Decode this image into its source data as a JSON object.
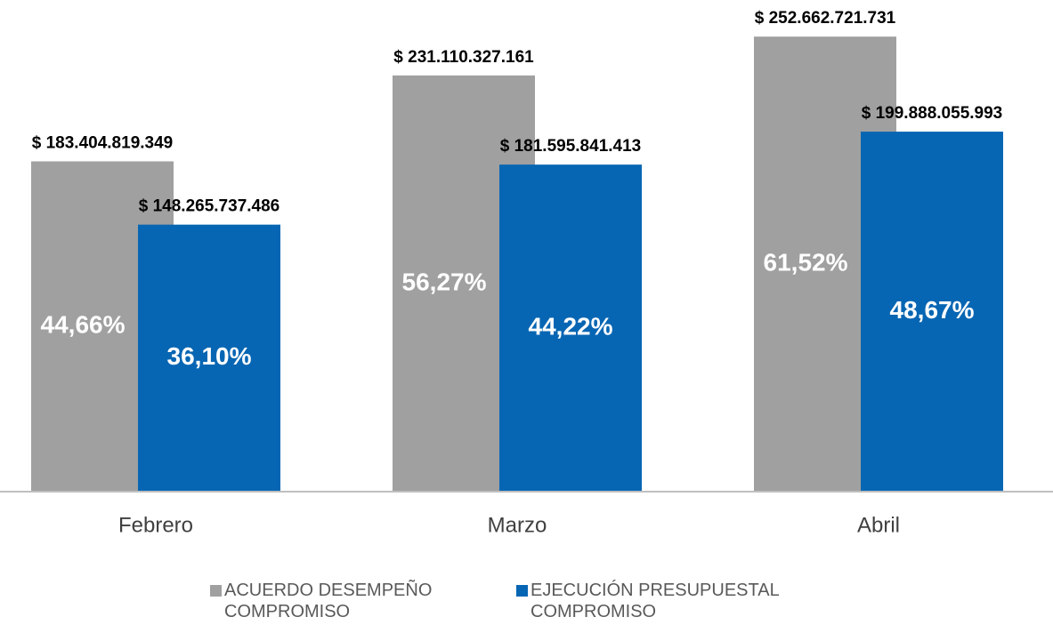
{
  "chart_data": {
    "type": "bar",
    "categories": [
      "Febrero",
      "Marzo",
      "Abril"
    ],
    "series": [
      {
        "name": "ACUERDO DESEMPEÑO COMPROMISO",
        "color": "#a0a0a0",
        "values": [
          183404819349,
          231110327161,
          252662721731
        ],
        "value_labels": [
          "$ 183.404.819.349",
          "$ 231.110.327.161",
          "$ 252.662.721.731"
        ],
        "shares": [
          44.66,
          56.27,
          61.52
        ],
        "share_labels": [
          "44,66%",
          "56,27%",
          "61,52%"
        ]
      },
      {
        "name": "EJECUCIÓN PRESUPUESTAL COMPROMISO",
        "color": "#0766b3",
        "values": [
          148265737486,
          181595841413,
          199888055993
        ],
        "value_labels": [
          "$ 148.265.737.486",
          "$ 181.595.841.413",
          "$ 199.888.055.993"
        ],
        "shares": [
          36.1,
          44.22,
          48.67
        ],
        "share_labels": [
          "36,10%",
          "44,22%",
          "48,67%"
        ]
      }
    ],
    "ylim": [
      0,
      273000000000
    ],
    "legend": "bottom"
  }
}
